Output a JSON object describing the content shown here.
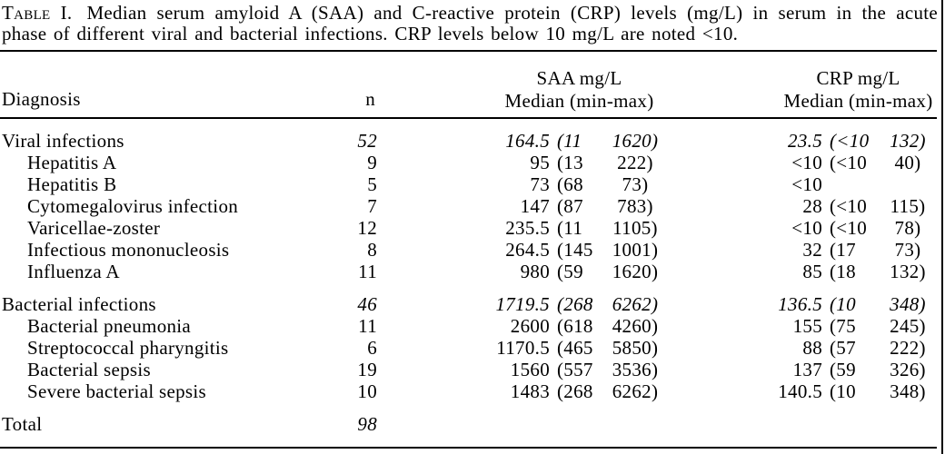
{
  "colors": {
    "ink": "#000000",
    "paper": "#ffffff"
  },
  "caption": {
    "label": "Table I.",
    "line1_rest": "Median serum amyloid A (SAA) and C-reactive protein (CRP) levels (mg/L) in serum in the acute",
    "line2": "phase of different viral and bacterial infections. CRP levels below 10 mg/L are noted <10."
  },
  "header": {
    "diagnosis": "Diagnosis",
    "n": "n",
    "saa_unit": "SAA mg/L",
    "saa_stat": "Median (min-max)",
    "crp_unit": "CRP mg/L",
    "crp_stat": "Median (min-max)"
  },
  "rows": [
    {
      "label": "Viral infections",
      "indent": false,
      "emphasis": true,
      "gap_before": false,
      "n": "52",
      "saa": {
        "median": "164.5",
        "min": "11",
        "max": "1620"
      },
      "crp": {
        "median": "23.5",
        "min": "<10",
        "max": "132"
      }
    },
    {
      "label": "Hepatitis A",
      "indent": true,
      "emphasis": false,
      "gap_before": false,
      "n": "9",
      "saa": {
        "median": "95",
        "min": "13",
        "max": "222"
      },
      "crp": {
        "median": "<10",
        "min": "<10",
        "max": "40"
      }
    },
    {
      "label": "Hepatitis B",
      "indent": true,
      "emphasis": false,
      "gap_before": false,
      "n": "5",
      "saa": {
        "median": "73",
        "min": "68",
        "max": "73"
      },
      "crp": {
        "median": "<10",
        "min": "",
        "max": ""
      }
    },
    {
      "label": "Cytomegalovirus infection",
      "indent": true,
      "emphasis": false,
      "gap_before": false,
      "n": "7",
      "saa": {
        "median": "147",
        "min": "87",
        "max": "783"
      },
      "crp": {
        "median": "28",
        "min": "<10",
        "max": "115"
      }
    },
    {
      "label": "Varicellae-zoster",
      "indent": true,
      "emphasis": false,
      "gap_before": false,
      "n": "12",
      "saa": {
        "median": "235.5",
        "min": "11",
        "max": "1105"
      },
      "crp": {
        "median": "<10",
        "min": "<10",
        "max": "78"
      }
    },
    {
      "label": "Infectious mononucleosis",
      "indent": true,
      "emphasis": false,
      "gap_before": false,
      "n": "8",
      "saa": {
        "median": "264.5",
        "min": "145",
        "max": "1001"
      },
      "crp": {
        "median": "32",
        "min": "17",
        "max": "73"
      }
    },
    {
      "label": "Influenza A",
      "indent": true,
      "emphasis": false,
      "gap_before": false,
      "n": "11",
      "saa": {
        "median": "980",
        "min": "59",
        "max": "1620"
      },
      "crp": {
        "median": "85",
        "min": "18",
        "max": "132"
      }
    },
    {
      "label": "Bacterial infections",
      "indent": false,
      "emphasis": true,
      "gap_before": true,
      "n": "46",
      "saa": {
        "median": "1719.5",
        "min": "268",
        "max": "6262"
      },
      "crp": {
        "median": "136.5",
        "min": "10",
        "max": "348"
      }
    },
    {
      "label": "Bacterial pneumonia",
      "indent": true,
      "emphasis": false,
      "gap_before": false,
      "n": "11",
      "saa": {
        "median": "2600",
        "min": "618",
        "max": "4260"
      },
      "crp": {
        "median": "155",
        "min": "75",
        "max": "245"
      }
    },
    {
      "label": "Streptococcal pharyngitis",
      "indent": true,
      "emphasis": false,
      "gap_before": false,
      "n": "6",
      "saa": {
        "median": "1170.5",
        "min": "465",
        "max": "5850"
      },
      "crp": {
        "median": "88",
        "min": "57",
        "max": "222"
      }
    },
    {
      "label": "Bacterial sepsis",
      "indent": true,
      "emphasis": false,
      "gap_before": false,
      "n": "19",
      "saa": {
        "median": "1560",
        "min": "557",
        "max": "3536"
      },
      "crp": {
        "median": "137",
        "min": "59",
        "max": "326"
      }
    },
    {
      "label": "Severe bacterial sepsis",
      "indent": true,
      "emphasis": false,
      "gap_before": false,
      "n": "10",
      "saa": {
        "median": "1483",
        "min": "268",
        "max": "6262"
      },
      "crp": {
        "median": "140.5",
        "min": "10",
        "max": "348"
      }
    },
    {
      "label": "Total",
      "indent": false,
      "emphasis": true,
      "gap_before": true,
      "n": "98",
      "saa": {
        "median": "",
        "min": "",
        "max": ""
      },
      "crp": {
        "median": "",
        "min": "",
        "max": ""
      }
    }
  ]
}
